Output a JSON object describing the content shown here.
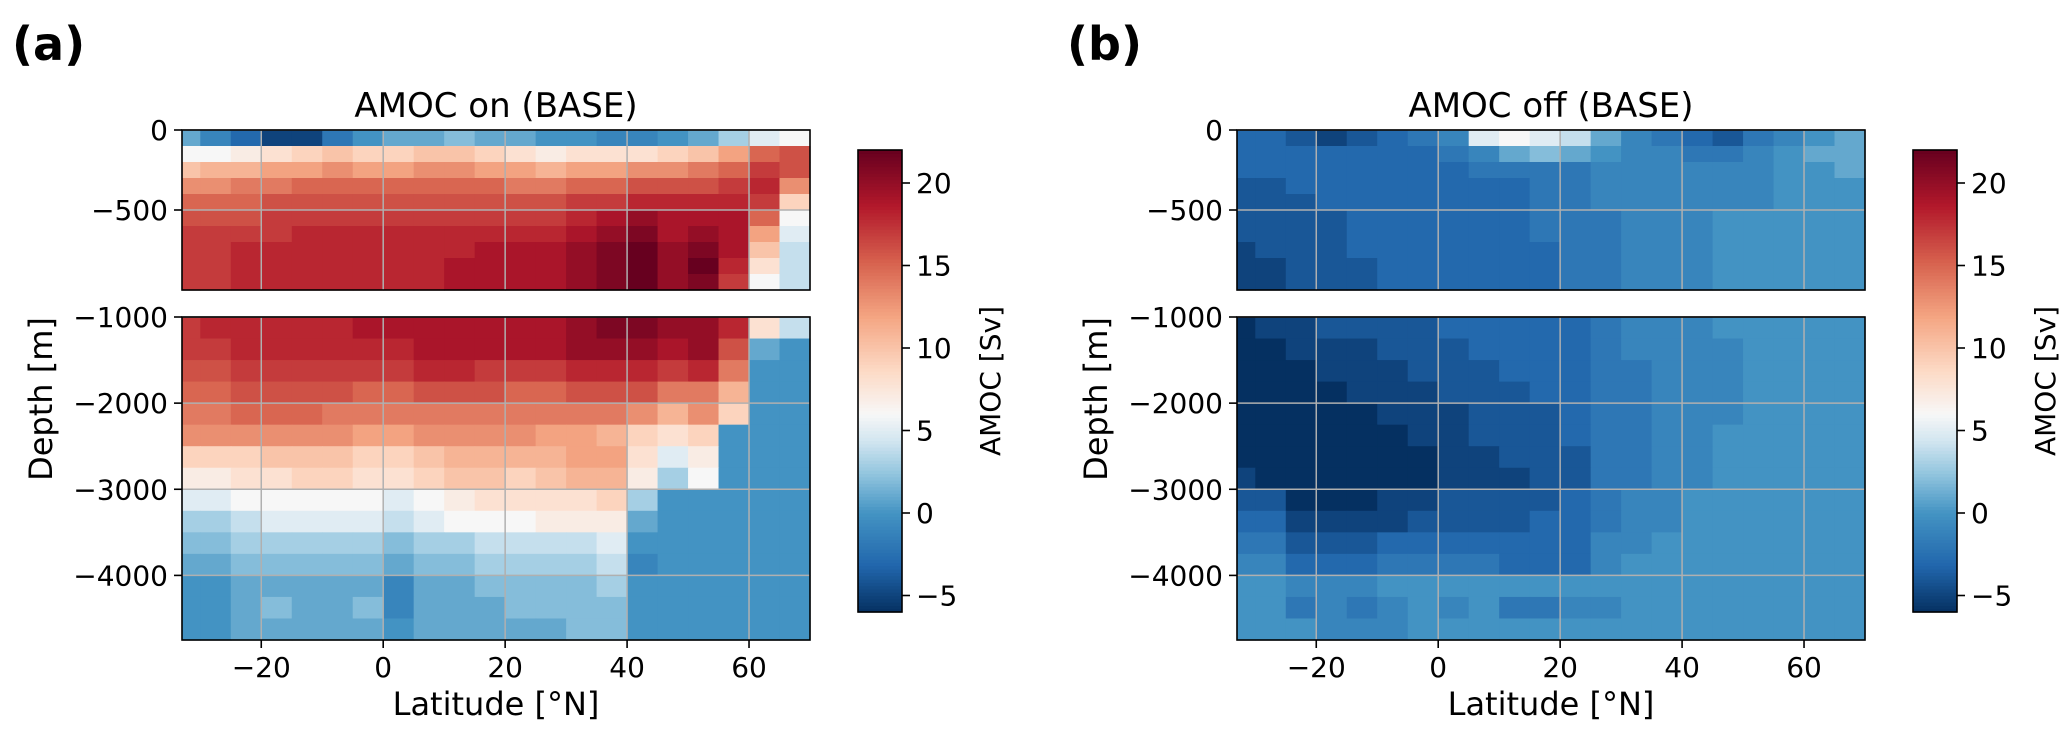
{
  "colors": {
    "negative_end": "#053061",
    "neutral": "#f7f7f7",
    "positive_end": "#67001f",
    "grid": "#b0b0b0",
    "frame": "#000000"
  },
  "panels": [
    {
      "id": "a",
      "label": "(a)",
      "title": "AMOC on (BASE)",
      "xlabel": "Latitude [°N]",
      "ylabel": "Depth [m]",
      "colorbar_label": "AMOC [Sv]",
      "colorbar_ticks": [
        "20",
        "15",
        "10",
        "5",
        "0",
        "−5"
      ],
      "xtick_labels": [
        "−20",
        "0",
        "20",
        "40",
        "60"
      ],
      "upper_ytick_labels": [
        "0",
        "−500"
      ],
      "lower_ytick_labels": [
        "−1000",
        "−2000",
        "−3000",
        "−4000"
      ]
    },
    {
      "id": "b",
      "label": "(b)",
      "title": "AMOC off (BASE)",
      "xlabel": "Latitude [°N]",
      "ylabel": "Depth [m]",
      "colorbar_label": "AMOC [Sv]",
      "colorbar_ticks": [
        "20",
        "15",
        "10",
        "5",
        "0",
        "−5"
      ],
      "xtick_labels": [
        "−20",
        "0",
        "20",
        "40",
        "60"
      ],
      "upper_ytick_labels": [
        "0",
        "−500"
      ],
      "lower_ytick_labels": [
        "−1000",
        "−2000",
        "−3000",
        "−4000"
      ]
    }
  ],
  "chart_data": [
    {
      "type": "heatmap",
      "title": "AMOC on (BASE)",
      "xlabel": "Latitude [°N]",
      "ylabel": "Depth [m]",
      "colorbar_label": "AMOC [Sv]",
      "color_range": [
        -6,
        22
      ],
      "colormap": "RdBu_r",
      "grid": true,
      "xlim": [
        -33,
        70
      ],
      "upper_ylim": [
        -1000,
        0
      ],
      "lower_ylim": [
        -4750,
        -1000
      ],
      "lat_bin_edges": [
        -33,
        -30,
        -25,
        -20,
        -15,
        -10,
        -5,
        0,
        5,
        10,
        15,
        20,
        25,
        30,
        35,
        40,
        45,
        50,
        55,
        60,
        65,
        70
      ],
      "upper_depth_edges": [
        0,
        -100,
        -200,
        -300,
        -400,
        -500,
        -600,
        -700,
        -800,
        -900,
        -1000
      ],
      "lower_depth_edges": [
        -1000,
        -1250,
        -1500,
        -1750,
        -2000,
        -2250,
        -2500,
        -2750,
        -3000,
        -3250,
        -3500,
        -3750,
        -4000,
        -4250,
        -4500,
        -4750
      ],
      "upper_values": [
        [
          1,
          -1,
          -3,
          -5,
          -5,
          -2,
          0,
          1,
          1,
          2,
          1,
          1,
          0,
          0,
          -1,
          -1,
          0,
          1,
          3,
          5,
          6
        ],
        [
          6,
          6,
          7,
          8,
          9,
          10,
          9,
          9,
          10,
          10,
          9,
          8,
          7,
          8,
          8,
          8,
          9,
          10,
          12,
          15,
          16
        ],
        [
          10,
          11,
          11,
          12,
          12,
          13,
          12,
          12,
          13,
          13,
          12,
          12,
          11,
          12,
          12,
          13,
          13,
          14,
          15,
          17,
          16
        ],
        [
          13,
          13,
          14,
          14,
          15,
          15,
          15,
          15,
          15,
          15,
          15,
          14,
          14,
          15,
          15,
          16,
          16,
          16,
          17,
          18,
          13
        ],
        [
          15,
          15,
          15,
          16,
          16,
          16,
          16,
          16,
          16,
          16,
          16,
          16,
          16,
          17,
          17,
          18,
          18,
          18,
          18,
          17,
          9
        ],
        [
          16,
          16,
          16,
          17,
          17,
          17,
          17,
          17,
          17,
          17,
          17,
          17,
          17,
          18,
          19,
          20,
          19,
          19,
          19,
          15,
          6
        ],
        [
          17,
          17,
          17,
          17,
          18,
          18,
          18,
          18,
          18,
          18,
          18,
          18,
          18,
          19,
          20,
          21,
          19,
          20,
          19,
          12,
          5
        ],
        [
          17,
          17,
          18,
          18,
          18,
          18,
          18,
          18,
          18,
          18,
          19,
          19,
          19,
          20,
          21,
          22,
          20,
          21,
          19,
          10,
          4
        ],
        [
          17,
          17,
          18,
          18,
          18,
          18,
          18,
          18,
          18,
          19,
          19,
          19,
          19,
          20,
          21,
          22,
          20,
          22,
          18,
          8,
          4
        ],
        [
          17,
          17,
          18,
          18,
          18,
          18,
          18,
          18,
          18,
          19,
          19,
          19,
          19,
          20,
          21,
          22,
          20,
          21,
          17,
          6,
          4
        ]
      ],
      "lower_values": [
        [
          17,
          18,
          18,
          18,
          18,
          18,
          19,
          19,
          19,
          19,
          19,
          19,
          19,
          20,
          21,
          21,
          20,
          20,
          18,
          8,
          4
        ],
        [
          17,
          17,
          18,
          18,
          18,
          18,
          18,
          18,
          19,
          19,
          19,
          19,
          19,
          20,
          20,
          20,
          19,
          20,
          16,
          1,
          0
        ],
        [
          16,
          16,
          17,
          17,
          17,
          17,
          17,
          17,
          18,
          18,
          17,
          17,
          17,
          18,
          18,
          18,
          17,
          18,
          14,
          0,
          0
        ],
        [
          15,
          15,
          16,
          16,
          16,
          16,
          15,
          15,
          16,
          16,
          16,
          15,
          15,
          16,
          16,
          16,
          14,
          14,
          11,
          0,
          0
        ],
        [
          14,
          14,
          15,
          15,
          15,
          14,
          14,
          14,
          14,
          14,
          14,
          14,
          14,
          14,
          14,
          13,
          11,
          13,
          9,
          0,
          0
        ],
        [
          13,
          13,
          13,
          13,
          13,
          13,
          12,
          12,
          13,
          13,
          13,
          13,
          12,
          12,
          11,
          9,
          8,
          9,
          0,
          0,
          0
        ],
        [
          9,
          9,
          9,
          10,
          10,
          10,
          9,
          9,
          10,
          11,
          11,
          11,
          11,
          12,
          12,
          8,
          5,
          7,
          0,
          0,
          0
        ],
        [
          7,
          7,
          8,
          8,
          9,
          9,
          8,
          8,
          9,
          10,
          10,
          9,
          10,
          11,
          11,
          7,
          3,
          6,
          0,
          0,
          0
        ],
        [
          5,
          5,
          6,
          6,
          6,
          6,
          6,
          5,
          6,
          7,
          8,
          8,
          8,
          8,
          9,
          3,
          0,
          0,
          0,
          0,
          0
        ],
        [
          3,
          3,
          4,
          5,
          5,
          5,
          5,
          4,
          5,
          6,
          6,
          6,
          7,
          7,
          7,
          1,
          0,
          0,
          0,
          0,
          0
        ],
        [
          2,
          2,
          3,
          3,
          3,
          3,
          3,
          2,
          3,
          3,
          4,
          4,
          4,
          4,
          5,
          0,
          0,
          0,
          0,
          0,
          0
        ],
        [
          1,
          1,
          2,
          2,
          2,
          2,
          2,
          1,
          2,
          2,
          3,
          3,
          3,
          3,
          4,
          -1,
          0,
          0,
          0,
          0,
          0
        ],
        [
          0,
          0,
          1,
          1,
          1,
          1,
          1,
          -1,
          1,
          1,
          2,
          2,
          2,
          2,
          3,
          0,
          0,
          0,
          0,
          0,
          0
        ],
        [
          0,
          0,
          1,
          2,
          1,
          1,
          2,
          -1,
          1,
          1,
          1,
          2,
          2,
          2,
          2,
          0,
          0,
          0,
          0,
          0,
          0
        ],
        [
          0,
          0,
          1,
          1,
          1,
          1,
          1,
          0,
          1,
          1,
          1,
          1,
          1,
          2,
          2,
          0,
          0,
          0,
          0,
          0,
          0
        ]
      ]
    },
    {
      "type": "heatmap",
      "title": "AMOC off (BASE)",
      "xlabel": "Latitude [°N]",
      "ylabel": "Depth [m]",
      "colorbar_label": "AMOC [Sv]",
      "color_range": [
        -6,
        22
      ],
      "colormap": "RdBu_r",
      "grid": true,
      "xlim": [
        -33,
        70
      ],
      "upper_ylim": [
        -1000,
        0
      ],
      "lower_ylim": [
        -4750,
        -1000
      ],
      "lat_bin_edges": [
        -33,
        -30,
        -25,
        -20,
        -15,
        -10,
        -5,
        0,
        5,
        10,
        15,
        20,
        25,
        30,
        35,
        40,
        45,
        50,
        55,
        60,
        65,
        70
      ],
      "upper_depth_edges": [
        0,
        -100,
        -200,
        -300,
        -400,
        -500,
        -600,
        -700,
        -800,
        -900,
        -1000
      ],
      "lower_depth_edges": [
        -1000,
        -1250,
        -1500,
        -1750,
        -2000,
        -2250,
        -2500,
        -2750,
        -3000,
        -3250,
        -3500,
        -3750,
        -4000,
        -4250,
        -4500,
        -4750
      ],
      "upper_values": [
        [
          -3,
          -3,
          -4,
          -5,
          -4,
          -3,
          -2,
          -1,
          5,
          6,
          5,
          4,
          1,
          -1,
          -2,
          -3,
          -4,
          -2,
          -1,
          0,
          1
        ],
        [
          -3,
          -3,
          -3,
          -3,
          -3,
          -3,
          -3,
          -2,
          -1,
          1,
          2,
          1,
          0,
          -1,
          -1,
          -2,
          -2,
          -1,
          0,
          1,
          1
        ],
        [
          -3,
          -3,
          -3,
          -3,
          -3,
          -3,
          -3,
          -3,
          -2,
          -2,
          -2,
          -2,
          -1,
          -1,
          -1,
          -1,
          -1,
          -1,
          0,
          0,
          1
        ],
        [
          -4,
          -4,
          -3,
          -3,
          -3,
          -3,
          -3,
          -3,
          -3,
          -3,
          -2,
          -2,
          -1,
          -1,
          -1,
          -1,
          -1,
          -1,
          0,
          0,
          0
        ],
        [
          -4,
          -4,
          -4,
          -3,
          -3,
          -3,
          -3,
          -3,
          -3,
          -3,
          -2,
          -2,
          -1,
          -1,
          -1,
          -1,
          -1,
          -1,
          0,
          0,
          0
        ],
        [
          -4,
          -4,
          -4,
          -4,
          -3,
          -3,
          -3,
          -3,
          -3,
          -3,
          -2,
          -2,
          -2,
          -1,
          -1,
          -1,
          0,
          0,
          0,
          0,
          0
        ],
        [
          -4,
          -4,
          -4,
          -4,
          -3,
          -3,
          -3,
          -3,
          -3,
          -3,
          -2,
          -2,
          -2,
          -1,
          -1,
          -1,
          0,
          0,
          0,
          0,
          0
        ],
        [
          -5,
          -4,
          -4,
          -4,
          -3,
          -3,
          -3,
          -3,
          -3,
          -3,
          -3,
          -2,
          -2,
          -1,
          -1,
          -1,
          0,
          0,
          0,
          0,
          0
        ],
        [
          -5,
          -5,
          -4,
          -4,
          -4,
          -3,
          -3,
          -3,
          -3,
          -3,
          -3,
          -2,
          -2,
          -1,
          -1,
          -1,
          0,
          0,
          0,
          0,
          0
        ],
        [
          -5,
          -5,
          -4,
          -4,
          -4,
          -3,
          -3,
          -3,
          -3,
          -3,
          -3,
          -2,
          -2,
          -1,
          -1,
          -1,
          0,
          0,
          0,
          0,
          0
        ]
      ],
      "lower_values": [
        [
          -6,
          -5,
          -5,
          -4,
          -4,
          -4,
          -4,
          -3,
          -3,
          -3,
          -3,
          -3,
          -2,
          -1,
          -1,
          -1,
          0,
          0,
          0,
          0,
          0
        ],
        [
          -6,
          -6,
          -5,
          -5,
          -5,
          -4,
          -4,
          -4,
          -3,
          -3,
          -3,
          -3,
          -2,
          -1,
          -1,
          -1,
          -1,
          0,
          0,
          0,
          0
        ],
        [
          -6,
          -6,
          -6,
          -5,
          -5,
          -5,
          -4,
          -4,
          -4,
          -3,
          -3,
          -3,
          -2,
          -2,
          -1,
          -1,
          -1,
          0,
          0,
          0,
          0
        ],
        [
          -6,
          -6,
          -6,
          -6,
          -5,
          -5,
          -5,
          -4,
          -4,
          -4,
          -3,
          -3,
          -2,
          -2,
          -1,
          -1,
          -1,
          0,
          0,
          0,
          0
        ],
        [
          -6,
          -6,
          -6,
          -6,
          -6,
          -5,
          -5,
          -5,
          -4,
          -4,
          -4,
          -3,
          -2,
          -2,
          -1,
          -1,
          -1,
          0,
          0,
          0,
          0
        ],
        [
          -6,
          -6,
          -6,
          -6,
          -6,
          -6,
          -5,
          -5,
          -4,
          -4,
          -4,
          -3,
          -2,
          -2,
          -1,
          -1,
          0,
          0,
          0,
          0,
          0
        ],
        [
          -6,
          -6,
          -6,
          -6,
          -6,
          -6,
          -6,
          -5,
          -5,
          -4,
          -4,
          -4,
          -2,
          -2,
          -1,
          -1,
          0,
          0,
          0,
          0,
          0
        ],
        [
          -5,
          -6,
          -6,
          -6,
          -6,
          -6,
          -6,
          -5,
          -5,
          -5,
          -4,
          -4,
          -2,
          -2,
          -1,
          -1,
          0,
          0,
          0,
          0,
          0
        ],
        [
          -4,
          -4,
          -6,
          -6,
          -6,
          -5,
          -5,
          -4,
          -4,
          -4,
          -4,
          -3,
          -2,
          -1,
          -1,
          0,
          0,
          0,
          0,
          0,
          0
        ],
        [
          -3,
          -3,
          -5,
          -5,
          -5,
          -5,
          -4,
          -4,
          -4,
          -4,
          -3,
          -3,
          -2,
          -1,
          -1,
          0,
          0,
          0,
          0,
          0,
          0
        ],
        [
          -2,
          -2,
          -4,
          -4,
          -4,
          -3,
          -3,
          -3,
          -3,
          -3,
          -3,
          -3,
          -1,
          -1,
          0,
          0,
          0,
          0,
          0,
          0,
          0
        ],
        [
          -1,
          -1,
          -3,
          -3,
          -3,
          -2,
          -2,
          -2,
          -2,
          -3,
          -3,
          -3,
          -1,
          0,
          0,
          0,
          0,
          0,
          0,
          0,
          0
        ],
        [
          0,
          0,
          -1,
          -1,
          -1,
          0,
          0,
          0,
          0,
          0,
          0,
          0,
          0,
          0,
          0,
          0,
          0,
          0,
          0,
          0,
          0
        ],
        [
          0,
          0,
          -2,
          -1,
          -2,
          -1,
          0,
          -1,
          0,
          -2,
          -2,
          -1,
          -1,
          0,
          0,
          0,
          0,
          0,
          0,
          0,
          0
        ],
        [
          0,
          0,
          0,
          -1,
          -1,
          -1,
          0,
          0,
          0,
          0,
          0,
          0,
          0,
          0,
          0,
          0,
          0,
          0,
          0,
          0,
          0
        ]
      ]
    }
  ]
}
